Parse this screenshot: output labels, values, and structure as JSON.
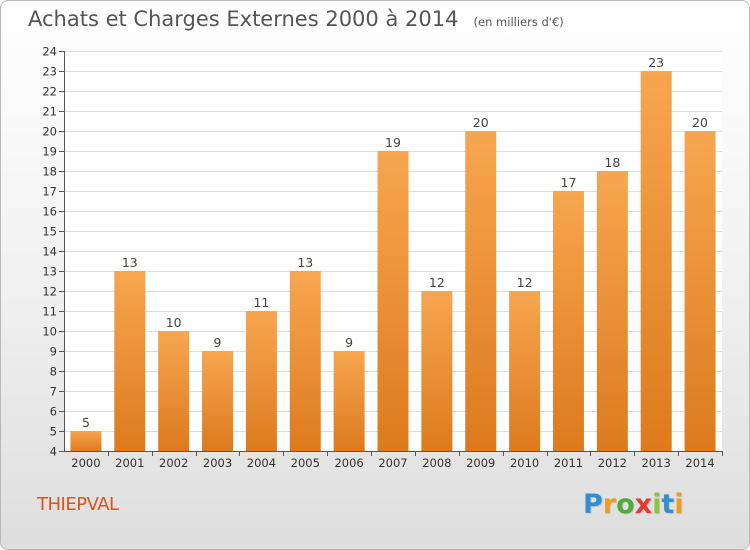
{
  "header": {
    "title": "Achats et Charges Externes 2000 à 2014",
    "unit": "(en milliers d'€)"
  },
  "footer": {
    "commune": "THIEPVAL",
    "brand": "Proxiti",
    "brand_letters": [
      {
        "char": "P",
        "color": "#2f8fd0"
      },
      {
        "char": "r",
        "color": "#f29a1f"
      },
      {
        "char": "o",
        "color": "#4faa3a"
      },
      {
        "char": "x",
        "color": "#e53a2c"
      },
      {
        "char": "i",
        "color": "#8cc63f"
      },
      {
        "char": "t",
        "color": "#2f8fd0"
      },
      {
        "char": "i",
        "color": "#f29a1f"
      }
    ]
  },
  "colors": {
    "bar_light": "#f7a650",
    "bar_dark": "#dd7a1d",
    "title": "#555555",
    "commune": "#d9541e"
  },
  "chart_data": {
    "type": "bar",
    "categories": [
      "2000",
      "2001",
      "2002",
      "2003",
      "2004",
      "2005",
      "2006",
      "2007",
      "2008",
      "2009",
      "2010",
      "2011",
      "2012",
      "2013",
      "2014"
    ],
    "values": [
      5,
      13,
      10,
      9,
      11,
      13,
      9,
      19,
      12,
      20,
      12,
      17,
      18,
      23,
      20
    ],
    "ylim": [
      4,
      24
    ],
    "yticks": [
      4,
      5,
      6,
      7,
      8,
      9,
      10,
      11,
      12,
      13,
      14,
      15,
      16,
      17,
      18,
      19,
      20,
      21,
      22,
      23,
      24
    ],
    "grid": true,
    "legend": "none",
    "data_labels": true
  }
}
